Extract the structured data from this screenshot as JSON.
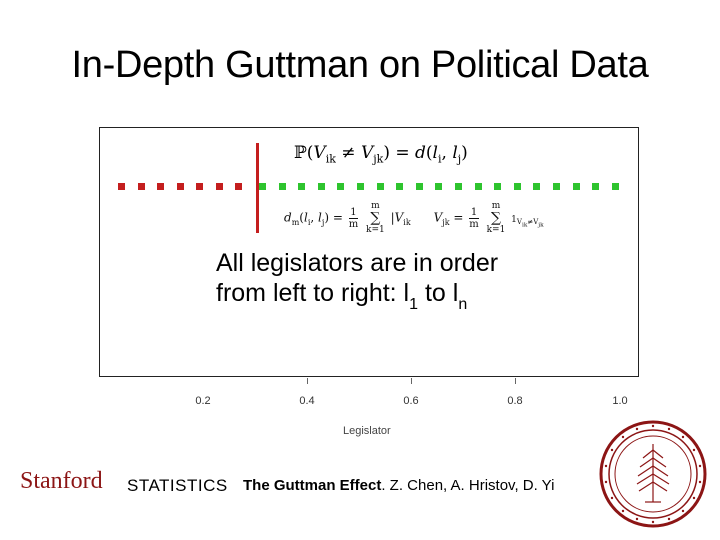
{
  "slide": {
    "title": "In-Depth Guttman on Political Data"
  },
  "figure": {
    "formula_top": "ℙ(V_ik ≠ V_jk) = d(l_i, l_j)",
    "formula_mid": {
      "dm_lhs": "d_m(l_i, l_j) = ",
      "frac_num": "1",
      "frac_den": "m",
      "sum_top": "m",
      "sum_bottom": "k=1",
      "term1": "|V_ik",
      "v_lhs": "V_jk = ",
      "term2": "1_{V_ik≠V_jk}"
    },
    "callout": {
      "line1": "All legislators are in order",
      "line2_prefix": "from left to right: l",
      "sub1": "1",
      "middle": " to l",
      "subn": "n"
    },
    "x_ticks": [
      "0.2",
      "0.4",
      "0.6",
      "0.8",
      "1.0"
    ],
    "x_axis_label": "Legislator",
    "colors": {
      "red": "#c41e1e",
      "green": "#2ec42e"
    },
    "dots": {
      "red_count": 7,
      "green_count": 19
    }
  },
  "footer": {
    "stanford": "Stanford",
    "statistics": "STATISTICS",
    "credit_bold": "The Guttman Effect",
    "credit_rest": ". Z. Chen, A. Hristov, D. Yi"
  },
  "seal": {
    "colors": {
      "ring": "#8c1515"
    }
  }
}
